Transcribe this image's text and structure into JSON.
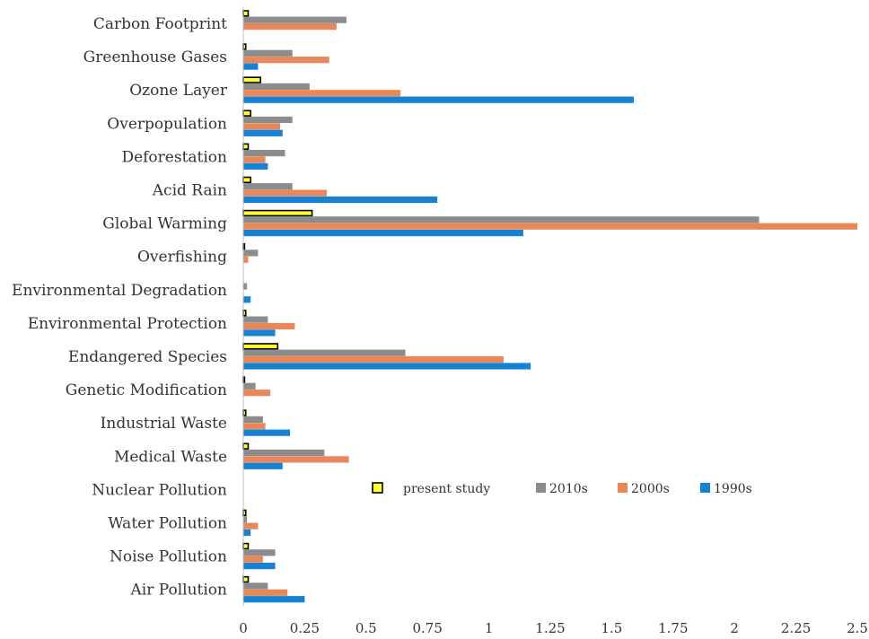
{
  "chart_data": {
    "type": "bar",
    "orientation": "horizontal",
    "categories": [
      "Carbon Footprint",
      "Greenhouse Gases",
      "Ozone Layer",
      "Overpopulation",
      "Deforestation",
      "Acid Rain",
      "Global Warming",
      "Overfishing",
      "Environmental Degradation",
      "Environmental Protection",
      "Endangered Species",
      "Genetic Modification",
      "Industrial Waste",
      "Medical Waste",
      "Nuclear Pollution",
      "Water Pollution",
      "Noise Pollution",
      "Air Pollution"
    ],
    "series": [
      {
        "name": "present study",
        "color": "#FFFF33",
        "stroke": "#000000",
        "values": [
          0.02,
          0.01,
          0.07,
          0.03,
          0.02,
          0.03,
          0.28,
          0.005,
          0.0,
          0.01,
          0.14,
          0.005,
          0.01,
          0.02,
          0.0,
          0.01,
          0.02,
          0.02
        ]
      },
      {
        "name": "2010s",
        "color": "#8C8C8C",
        "values": [
          0.42,
          0.2,
          0.27,
          0.2,
          0.17,
          0.2,
          2.1,
          0.06,
          0.015,
          0.1,
          0.66,
          0.05,
          0.08,
          0.33,
          0.0,
          0.015,
          0.13,
          0.1
        ]
      },
      {
        "name": "2000s",
        "color": "#E8875A",
        "values": [
          0.38,
          0.35,
          0.64,
          0.15,
          0.09,
          0.34,
          2.5,
          0.02,
          0.0,
          0.21,
          1.06,
          0.11,
          0.09,
          0.43,
          0.0,
          0.06,
          0.08,
          0.18
        ]
      },
      {
        "name": "1990s",
        "color": "#1582D3",
        "values": [
          0.0,
          0.06,
          1.59,
          0.16,
          0.1,
          0.79,
          1.14,
          0.0,
          0.03,
          0.13,
          1.17,
          0.0,
          0.19,
          0.16,
          0.0,
          0.03,
          0.13,
          0.25
        ]
      }
    ],
    "xlim": [
      0,
      2.5
    ],
    "xticks": [
      "0",
      "0.25",
      "0.5",
      "0.75",
      "1",
      "1.25",
      "1.5",
      "1.75",
      "2",
      "2.25",
      "2.5"
    ],
    "grid": false,
    "legend_position": "center-right"
  }
}
